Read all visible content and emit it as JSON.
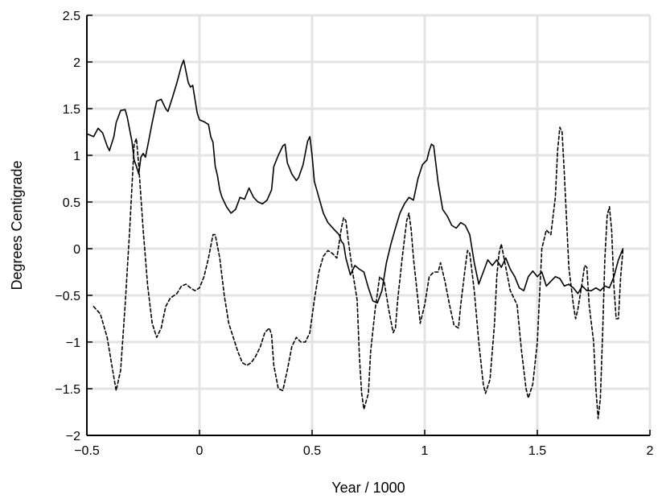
{
  "chart_data": {
    "type": "line",
    "title": "",
    "xlabel": "Year / 1000",
    "ylabel": "Degrees Centigrade",
    "xlim": [
      -0.5,
      2
    ],
    "ylim": [
      -2,
      2.5
    ],
    "xticks": [
      -0.5,
      0,
      0.5,
      1,
      1.5,
      2
    ],
    "xtick_labels": [
      "−0.5",
      "0",
      "0.5",
      "1",
      "1.5",
      "2"
    ],
    "yticks": [
      -2,
      -1.5,
      -1,
      -0.5,
      0,
      0.5,
      1,
      1.5,
      2,
      2.5
    ],
    "ytick_labels": [
      "−2",
      "−1.5",
      "−1",
      "−0.5",
      "0",
      "0.5",
      "1",
      "1.5",
      "2",
      "2.5"
    ],
    "grid": true,
    "series": [
      {
        "style": "solid",
        "color": "#000000",
        "points": [
          [
            -0.5,
            1.23
          ],
          [
            -0.47,
            1.2
          ],
          [
            -0.45,
            1.29
          ],
          [
            -0.43,
            1.24
          ],
          [
            -0.41,
            1.1
          ],
          [
            -0.4,
            1.05
          ],
          [
            -0.38,
            1.2
          ],
          [
            -0.37,
            1.35
          ],
          [
            -0.35,
            1.48
          ],
          [
            -0.33,
            1.49
          ],
          [
            -0.32,
            1.4
          ],
          [
            -0.3,
            1.15
          ],
          [
            -0.29,
            0.95
          ],
          [
            -0.28,
            0.88
          ],
          [
            -0.27,
            0.8
          ],
          [
            -0.26,
            0.98
          ],
          [
            -0.25,
            1.02
          ],
          [
            -0.24,
            0.98
          ],
          [
            -0.23,
            1.1
          ],
          [
            -0.21,
            1.35
          ],
          [
            -0.19,
            1.58
          ],
          [
            -0.17,
            1.6
          ],
          [
            -0.15,
            1.5
          ],
          [
            -0.14,
            1.47
          ],
          [
            -0.12,
            1.62
          ],
          [
            -0.1,
            1.78
          ],
          [
            -0.09,
            1.87
          ],
          [
            -0.08,
            1.96
          ],
          [
            -0.07,
            2.02
          ],
          [
            -0.06,
            1.9
          ],
          [
            -0.05,
            1.78
          ],
          [
            -0.04,
            1.73
          ],
          [
            -0.03,
            1.75
          ],
          [
            -0.02,
            1.6
          ],
          [
            -0.01,
            1.45
          ],
          [
            0.0,
            1.38
          ],
          [
            0.02,
            1.36
          ],
          [
            0.04,
            1.33
          ],
          [
            0.05,
            1.2
          ],
          [
            0.06,
            1.14
          ],
          [
            0.07,
            0.88
          ],
          [
            0.08,
            0.78
          ],
          [
            0.09,
            0.63
          ],
          [
            0.1,
            0.55
          ],
          [
            0.12,
            0.45
          ],
          [
            0.14,
            0.38
          ],
          [
            0.16,
            0.42
          ],
          [
            0.18,
            0.55
          ],
          [
            0.2,
            0.53
          ],
          [
            0.22,
            0.65
          ],
          [
            0.24,
            0.55
          ],
          [
            0.26,
            0.5
          ],
          [
            0.28,
            0.48
          ],
          [
            0.3,
            0.52
          ],
          [
            0.32,
            0.63
          ],
          [
            0.33,
            0.88
          ],
          [
            0.35,
            1.0
          ],
          [
            0.37,
            1.1
          ],
          [
            0.38,
            1.12
          ],
          [
            0.39,
            0.92
          ],
          [
            0.41,
            0.8
          ],
          [
            0.43,
            0.73
          ],
          [
            0.44,
            0.76
          ],
          [
            0.46,
            0.9
          ],
          [
            0.48,
            1.15
          ],
          [
            0.49,
            1.2
          ],
          [
            0.5,
            1.0
          ],
          [
            0.51,
            0.72
          ],
          [
            0.53,
            0.55
          ],
          [
            0.55,
            0.38
          ],
          [
            0.57,
            0.28
          ],
          [
            0.6,
            0.2
          ],
          [
            0.62,
            0.15
          ],
          [
            0.63,
            0.08
          ],
          [
            0.64,
            0.05
          ],
          [
            0.65,
            -0.1
          ],
          [
            0.67,
            -0.28
          ],
          [
            0.69,
            -0.18
          ],
          [
            0.71,
            -0.22
          ],
          [
            0.73,
            -0.25
          ],
          [
            0.75,
            -0.42
          ],
          [
            0.77,
            -0.56
          ],
          [
            0.79,
            -0.58
          ],
          [
            0.81,
            -0.45
          ],
          [
            0.83,
            -0.15
          ],
          [
            0.85,
            0.05
          ],
          [
            0.87,
            0.22
          ],
          [
            0.89,
            0.38
          ],
          [
            0.91,
            0.48
          ],
          [
            0.93,
            0.55
          ],
          [
            0.95,
            0.52
          ],
          [
            0.97,
            0.75
          ],
          [
            0.99,
            0.9
          ],
          [
            1.01,
            0.95
          ],
          [
            1.02,
            1.05
          ],
          [
            1.03,
            1.12
          ],
          [
            1.04,
            1.1
          ],
          [
            1.06,
            0.7
          ],
          [
            1.08,
            0.42
          ],
          [
            1.1,
            0.35
          ],
          [
            1.12,
            0.25
          ],
          [
            1.14,
            0.22
          ],
          [
            1.16,
            0.28
          ],
          [
            1.18,
            0.25
          ],
          [
            1.2,
            0.15
          ],
          [
            1.22,
            -0.15
          ],
          [
            1.24,
            -0.38
          ],
          [
            1.26,
            -0.25
          ],
          [
            1.28,
            -0.12
          ],
          [
            1.3,
            -0.18
          ],
          [
            1.32,
            -0.12
          ],
          [
            1.34,
            -0.2
          ],
          [
            1.36,
            -0.1
          ],
          [
            1.38,
            -0.22
          ],
          [
            1.4,
            -0.3
          ],
          [
            1.42,
            -0.42
          ],
          [
            1.44,
            -0.45
          ],
          [
            1.46,
            -0.3
          ],
          [
            1.48,
            -0.24
          ],
          [
            1.5,
            -0.3
          ],
          [
            1.52,
            -0.25
          ],
          [
            1.54,
            -0.4
          ],
          [
            1.56,
            -0.35
          ],
          [
            1.58,
            -0.3
          ],
          [
            1.6,
            -0.32
          ],
          [
            1.62,
            -0.4
          ],
          [
            1.64,
            -0.38
          ],
          [
            1.66,
            -0.42
          ],
          [
            1.68,
            -0.48
          ],
          [
            1.7,
            -0.4
          ],
          [
            1.72,
            -0.45
          ],
          [
            1.74,
            -0.45
          ],
          [
            1.76,
            -0.42
          ],
          [
            1.78,
            -0.45
          ],
          [
            1.8,
            -0.4
          ],
          [
            1.82,
            -0.42
          ],
          [
            1.84,
            -0.3
          ],
          [
            1.86,
            -0.12
          ],
          [
            1.88,
            0.0
          ]
        ]
      },
      {
        "style": "dashed",
        "color": "#000000",
        "points": [
          [
            -0.47,
            -0.62
          ],
          [
            -0.44,
            -0.7
          ],
          [
            -0.41,
            -0.95
          ],
          [
            -0.38,
            -1.38
          ],
          [
            -0.37,
            -1.52
          ],
          [
            -0.35,
            -1.3
          ],
          [
            -0.33,
            -0.6
          ],
          [
            -0.31,
            0.2
          ],
          [
            -0.29,
            1.12
          ],
          [
            -0.28,
            1.18
          ],
          [
            -0.27,
            0.9
          ],
          [
            -0.25,
            0.2
          ],
          [
            -0.23,
            -0.4
          ],
          [
            -0.21,
            -0.8
          ],
          [
            -0.19,
            -0.95
          ],
          [
            -0.17,
            -0.85
          ],
          [
            -0.15,
            -0.62
          ],
          [
            -0.13,
            -0.53
          ],
          [
            -0.1,
            -0.48
          ],
          [
            -0.08,
            -0.4
          ],
          [
            -0.06,
            -0.38
          ],
          [
            -0.04,
            -0.42
          ],
          [
            -0.02,
            -0.45
          ],
          [
            0.0,
            -0.42
          ],
          [
            0.02,
            -0.3
          ],
          [
            0.04,
            -0.1
          ],
          [
            0.06,
            0.15
          ],
          [
            0.07,
            0.15
          ],
          [
            0.09,
            -0.1
          ],
          [
            0.11,
            -0.5
          ],
          [
            0.13,
            -0.8
          ],
          [
            0.15,
            -0.95
          ],
          [
            0.17,
            -1.1
          ],
          [
            0.19,
            -1.22
          ],
          [
            0.21,
            -1.25
          ],
          [
            0.23,
            -1.22
          ],
          [
            0.25,
            -1.15
          ],
          [
            0.27,
            -1.05
          ],
          [
            0.29,
            -0.9
          ],
          [
            0.31,
            -0.85
          ],
          [
            0.32,
            -0.92
          ],
          [
            0.33,
            -1.25
          ],
          [
            0.35,
            -1.5
          ],
          [
            0.37,
            -1.52
          ],
          [
            0.39,
            -1.3
          ],
          [
            0.41,
            -1.05
          ],
          [
            0.43,
            -0.95
          ],
          [
            0.45,
            -1.0
          ],
          [
            0.47,
            -1.0
          ],
          [
            0.49,
            -0.9
          ],
          [
            0.51,
            -0.55
          ],
          [
            0.53,
            -0.25
          ],
          [
            0.55,
            -0.08
          ],
          [
            0.57,
            -0.02
          ],
          [
            0.59,
            -0.05
          ],
          [
            0.61,
            -0.1
          ],
          [
            0.63,
            0.22
          ],
          [
            0.64,
            0.33
          ],
          [
            0.65,
            0.3
          ],
          [
            0.66,
            0.1
          ],
          [
            0.68,
            -0.25
          ],
          [
            0.7,
            -0.55
          ],
          [
            0.71,
            -1.15
          ],
          [
            0.72,
            -1.55
          ],
          [
            0.73,
            -1.72
          ],
          [
            0.75,
            -1.55
          ],
          [
            0.76,
            -1.1
          ],
          [
            0.78,
            -0.65
          ],
          [
            0.8,
            -0.3
          ],
          [
            0.82,
            -0.35
          ],
          [
            0.84,
            -0.65
          ],
          [
            0.86,
            -0.9
          ],
          [
            0.87,
            -0.85
          ],
          [
            0.88,
            -0.55
          ],
          [
            0.9,
            -0.1
          ],
          [
            0.92,
            0.3
          ],
          [
            0.93,
            0.38
          ],
          [
            0.94,
            0.2
          ],
          [
            0.95,
            -0.1
          ],
          [
            0.97,
            -0.55
          ],
          [
            0.98,
            -0.8
          ],
          [
            1.0,
            -0.6
          ],
          [
            1.02,
            -0.3
          ],
          [
            1.04,
            -0.25
          ],
          [
            1.06,
            -0.25
          ],
          [
            1.07,
            -0.15
          ],
          [
            1.09,
            -0.35
          ],
          [
            1.11,
            -0.6
          ],
          [
            1.13,
            -0.82
          ],
          [
            1.15,
            -0.85
          ],
          [
            1.16,
            -0.6
          ],
          [
            1.18,
            -0.2
          ],
          [
            1.19,
            -0.02
          ],
          [
            1.2,
            -0.05
          ],
          [
            1.22,
            -0.45
          ],
          [
            1.24,
            -1.0
          ],
          [
            1.26,
            -1.45
          ],
          [
            1.27,
            -1.55
          ],
          [
            1.29,
            -1.4
          ],
          [
            1.31,
            -0.8
          ],
          [
            1.32,
            -0.3
          ],
          [
            1.33,
            -0.05
          ],
          [
            1.34,
            0.05
          ],
          [
            1.36,
            -0.2
          ],
          [
            1.38,
            -0.45
          ],
          [
            1.41,
            -0.6
          ],
          [
            1.43,
            -1.1
          ],
          [
            1.45,
            -1.5
          ],
          [
            1.46,
            -1.6
          ],
          [
            1.48,
            -1.45
          ],
          [
            1.5,
            -1.0
          ],
          [
            1.51,
            -0.5
          ],
          [
            1.52,
            0.0
          ],
          [
            1.54,
            0.2
          ],
          [
            1.56,
            0.15
          ],
          [
            1.58,
            0.55
          ],
          [
            1.59,
            1.05
          ],
          [
            1.6,
            1.3
          ],
          [
            1.61,
            1.25
          ],
          [
            1.62,
            0.8
          ],
          [
            1.64,
            -0.2
          ],
          [
            1.66,
            -0.6
          ],
          [
            1.67,
            -0.75
          ],
          [
            1.68,
            -0.65
          ],
          [
            1.7,
            -0.35
          ],
          [
            1.71,
            -0.18
          ],
          [
            1.72,
            -0.2
          ],
          [
            1.73,
            -0.6
          ],
          [
            1.75,
            -1.0
          ],
          [
            1.76,
            -1.5
          ],
          [
            1.77,
            -1.82
          ],
          [
            1.78,
            -1.6
          ],
          [
            1.79,
            -0.9
          ],
          [
            1.8,
            -0.1
          ],
          [
            1.81,
            0.35
          ],
          [
            1.82,
            0.45
          ],
          [
            1.83,
            0.2
          ],
          [
            1.84,
            -0.4
          ],
          [
            1.85,
            -0.75
          ],
          [
            1.86,
            -0.75
          ],
          [
            1.87,
            -0.3
          ],
          [
            1.88,
            -0.02
          ]
        ]
      }
    ]
  }
}
